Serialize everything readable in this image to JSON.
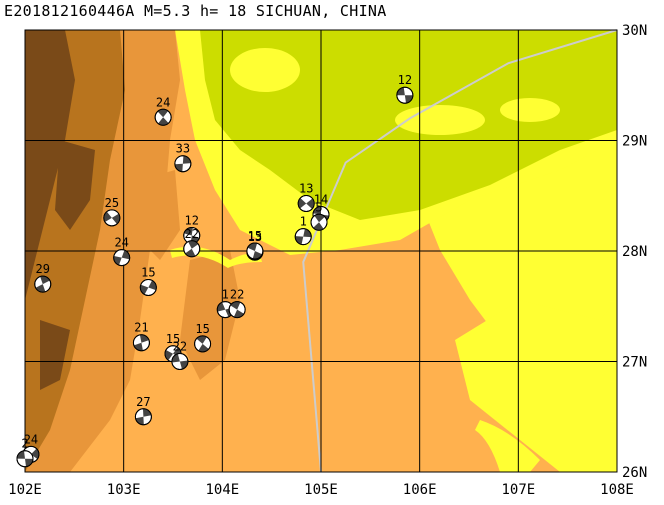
{
  "title": "E201812160446A M=5.3 h= 18 SICHUAN, CHINA",
  "colors": {
    "lowland": "#ccdd00",
    "yellow": "#ffff33",
    "orange_light": "#ffb14e",
    "orange_mid": "#e8963a",
    "brown": "#b8741e",
    "dark": "#7a4a18",
    "border_line": "#cccccc",
    "grid": "#000000"
  },
  "axes": {
    "lon_labels": [
      "102E",
      "103E",
      "104E",
      "105E",
      "106E",
      "107E",
      "108E"
    ],
    "lat_labels": [
      "26N",
      "27N",
      "28N",
      "29N",
      "30N"
    ],
    "lon_range": [
      102,
      108
    ],
    "lat_range": [
      26,
      30
    ]
  },
  "events": [
    {
      "label": "12",
      "lon": 105.85,
      "lat": 29.41
    },
    {
      "label": "24",
      "lon": 103.4,
      "lat": 29.21
    },
    {
      "label": "33",
      "lon": 103.6,
      "lat": 28.79
    },
    {
      "label": "13",
      "lon": 104.85,
      "lat": 28.43
    },
    {
      "label": "14",
      "lon": 105.0,
      "lat": 28.33
    },
    {
      "label": "5",
      "lon": 104.98,
      "lat": 28.26
    },
    {
      "label": "1",
      "lon": 104.82,
      "lat": 28.13
    },
    {
      "label": "25",
      "lon": 102.88,
      "lat": 28.3
    },
    {
      "label": "12",
      "lon": 103.69,
      "lat": 28.14
    },
    {
      "label": "22",
      "lon": 103.69,
      "lat": 28.02
    },
    {
      "label": "24",
      "lon": 102.98,
      "lat": 27.94
    },
    {
      "label": "13",
      "lon": 104.33,
      "lat": 27.99
    },
    {
      "label": "15",
      "lon": 104.33,
      "lat": 28.0
    },
    {
      "label": "29",
      "lon": 102.18,
      "lat": 27.7
    },
    {
      "label": "15",
      "lon": 103.25,
      "lat": 27.67
    },
    {
      "label": "1",
      "lon": 104.03,
      "lat": 27.47
    },
    {
      "label": "22",
      "lon": 104.15,
      "lat": 27.47
    },
    {
      "label": "21",
      "lon": 103.18,
      "lat": 27.17
    },
    {
      "label": "15",
      "lon": 103.5,
      "lat": 27.07
    },
    {
      "label": "22",
      "lon": 103.57,
      "lat": 27.0
    },
    {
      "label": "15",
      "lon": 103.8,
      "lat": 27.16
    },
    {
      "label": "27",
      "lon": 103.2,
      "lat": 26.5
    },
    {
      "label": "24",
      "lon": 102.06,
      "lat": 26.16
    },
    {
      "label": "2",
      "lon": 102.0,
      "lat": 26.12
    }
  ],
  "border": [
    [
      105.0,
      26.0
    ],
    [
      104.82,
      27.9
    ],
    [
      105.25,
      28.8
    ],
    [
      105.9,
      29.2
    ],
    [
      106.9,
      29.7
    ],
    [
      108.0,
      30.0
    ]
  ]
}
